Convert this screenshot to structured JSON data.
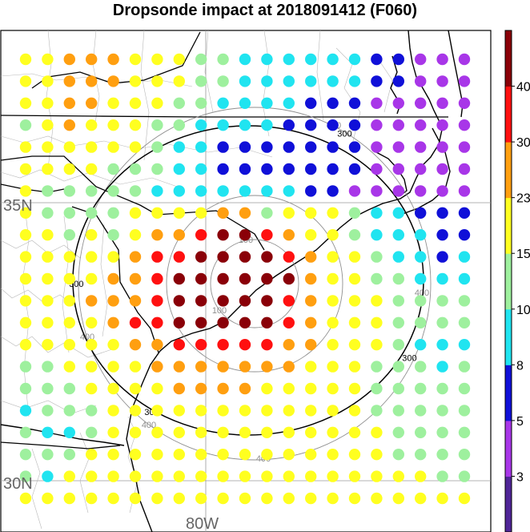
{
  "title": "Dropsonde impact at 2018091412 (F060)",
  "map": {
    "lat_labels": [
      "35N",
      "30N"
    ],
    "lon_labels": [
      "80W"
    ],
    "ring_line_color": "#8f8f8f",
    "contour_color": "#000000",
    "coast_color": "#000000",
    "border_color": "#a8a8a8"
  },
  "distance_contours": {
    "gray": [
      {
        "value": 100,
        "label": "100"
      },
      {
        "value": 200,
        "label": ""
      },
      {
        "value": 400,
        "label": "400"
      }
    ],
    "black": [
      {
        "value": 300,
        "label": "300"
      }
    ]
  },
  "colorbar": {
    "ticks": [
      "3",
      "5",
      "8",
      "10",
      "15",
      "23",
      "30",
      "40"
    ],
    "colors": [
      "#4f2597",
      "#a836e8",
      "#1010d8",
      "#20e4f0",
      "#9ef09e",
      "#ffff20",
      "#ff9f10",
      "#ff1010",
      "#8a0008"
    ]
  },
  "chart_data": {
    "type": "heatmap",
    "title": "Dropsonde impact at 2018091412 (F060)",
    "rows": 21,
    "cols": 21,
    "classes_note": "",
    "values": [
      [
        5,
        5,
        6,
        6,
        6,
        5,
        5,
        5,
        4,
        4,
        3,
        3,
        3,
        3,
        3,
        3,
        2,
        2,
        1,
        1,
        1
      ],
      [
        5,
        5,
        6,
        6,
        6,
        5,
        5,
        5,
        4,
        4,
        3,
        3,
        3,
        3,
        3,
        3,
        2,
        2,
        1,
        1,
        1
      ],
      [
        5,
        5,
        6,
        6,
        5,
        5,
        5,
        4,
        4,
        3,
        3,
        3,
        3,
        2,
        2,
        2,
        1,
        1,
        1,
        1,
        1
      ],
      [
        4,
        5,
        6,
        5,
        5,
        5,
        4,
        4,
        3,
        3,
        3,
        3,
        2,
        2,
        2,
        2,
        1,
        1,
        1,
        1,
        1
      ],
      [
        5,
        5,
        5,
        5,
        5,
        5,
        4,
        3,
        3,
        2,
        2,
        2,
        2,
        2,
        2,
        2,
        1,
        1,
        1,
        1,
        1
      ],
      [
        5,
        5,
        5,
        5,
        4,
        4,
        4,
        3,
        3,
        2,
        2,
        2,
        2,
        2,
        2,
        2,
        1,
        1,
        1,
        1,
        1
      ],
      [
        5,
        4,
        4,
        4,
        4,
        4,
        3,
        3,
        3,
        3,
        3,
        3,
        3,
        2,
        2,
        1,
        1,
        1,
        1,
        1,
        1
      ],
      [
        5,
        4,
        4,
        4,
        4,
        5,
        5,
        5,
        5,
        6,
        6,
        4,
        5,
        5,
        5,
        4,
        3,
        3,
        2,
        2,
        2
      ],
      [
        5,
        5,
        4,
        5,
        4,
        5,
        6,
        6,
        7,
        8,
        8,
        7,
        6,
        5,
        5,
        4,
        3,
        3,
        3,
        2,
        2
      ],
      [
        5,
        5,
        5,
        5,
        5,
        6,
        7,
        7,
        8,
        8,
        8,
        8,
        7,
        6,
        5,
        5,
        4,
        3,
        3,
        2,
        3
      ],
      [
        5,
        5,
        5,
        5,
        6,
        6,
        7,
        8,
        8,
        8,
        8,
        8,
        8,
        6,
        5,
        5,
        4,
        4,
        3,
        3,
        3
      ],
      [
        5,
        5,
        5,
        6,
        6,
        6,
        7,
        8,
        8,
        8,
        8,
        8,
        7,
        6,
        5,
        5,
        5,
        4,
        4,
        4,
        4
      ],
      [
        5,
        5,
        5,
        5,
        6,
        7,
        7,
        8,
        8,
        8,
        8,
        8,
        7,
        6,
        5,
        5,
        5,
        4,
        4,
        4,
        4
      ],
      [
        5,
        5,
        5,
        5,
        5,
        6,
        6,
        7,
        7,
        7,
        7,
        7,
        6,
        6,
        5,
        5,
        5,
        4,
        3,
        3,
        3
      ],
      [
        4,
        4,
        5,
        5,
        5,
        5,
        6,
        6,
        6,
        6,
        6,
        6,
        6,
        5,
        5,
        5,
        4,
        4,
        4,
        3,
        4
      ],
      [
        4,
        4,
        4,
        5,
        5,
        5,
        5,
        6,
        6,
        6,
        6,
        5,
        5,
        5,
        5,
        5,
        4,
        4,
        4,
        4,
        4
      ],
      [
        3,
        4,
        4,
        4,
        5,
        5,
        5,
        5,
        5,
        5,
        5,
        5,
        5,
        5,
        5,
        5,
        4,
        4,
        4,
        4,
        4
      ],
      [
        4,
        3,
        3,
        4,
        5,
        5,
        5,
        5,
        5,
        5,
        5,
        5,
        5,
        5,
        5,
        5,
        5,
        4,
        4,
        4,
        4
      ],
      [
        4,
        4,
        4,
        5,
        5,
        5,
        5,
        5,
        5,
        5,
        5,
        5,
        5,
        5,
        5,
        5,
        5,
        4,
        4,
        4,
        4
      ],
      [
        4,
        3,
        5,
        5,
        5,
        5,
        5,
        5,
        5,
        5,
        5,
        5,
        5,
        5,
        5,
        5,
        5,
        5,
        5,
        4,
        4
      ],
      [
        5,
        5,
        5,
        5,
        5,
        5,
        5,
        5,
        5,
        5,
        5,
        5,
        5,
        5,
        5,
        5,
        5,
        5,
        5,
        5,
        5
      ]
    ]
  }
}
